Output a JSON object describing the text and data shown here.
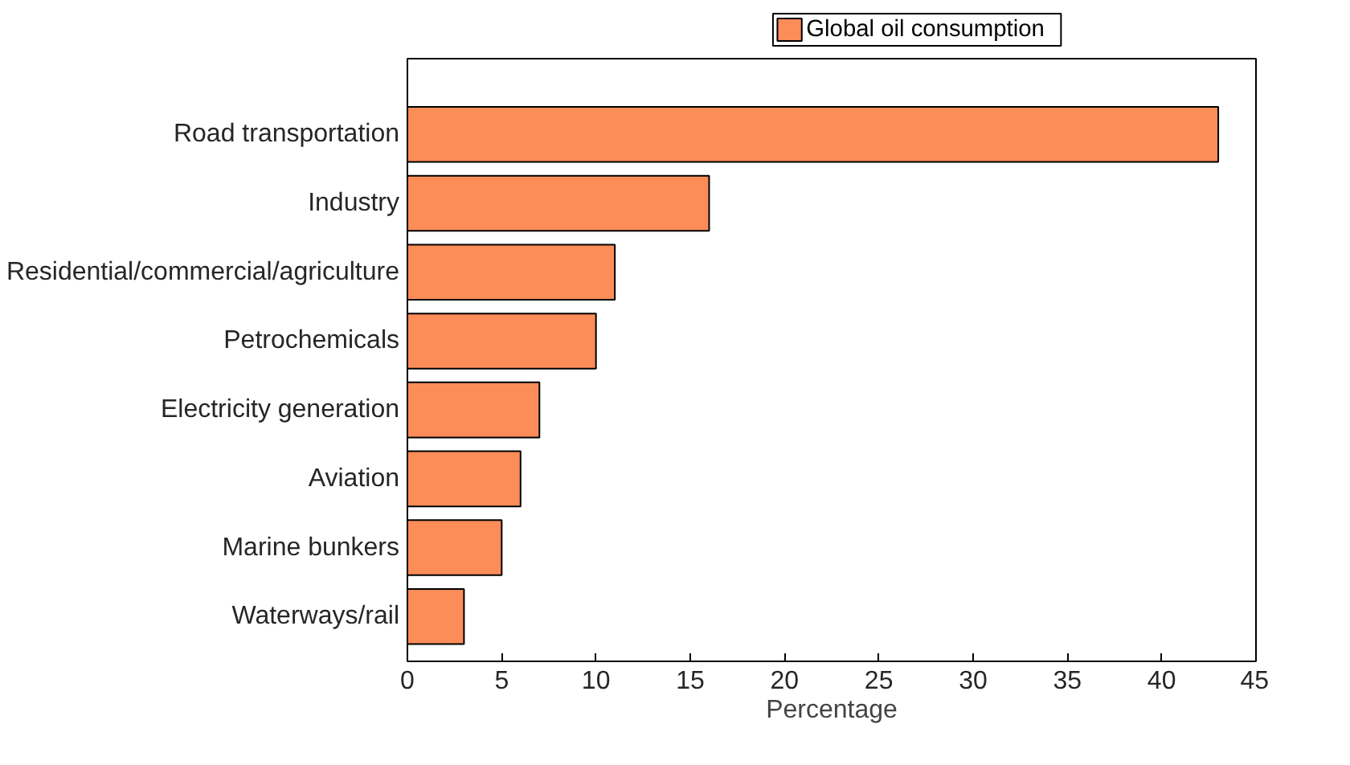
{
  "chart_data": {
    "type": "bar",
    "orientation": "horizontal",
    "xlabel": "Percentage",
    "categories": [
      "Road transportation",
      "Industry",
      "Residential/commercial/agriculture",
      "Petrochemicals",
      "Electricity generation",
      "Aviation",
      "Marine bunkers",
      "Waterways/rail"
    ],
    "series": [
      {
        "name": "Global oil consumption",
        "color": "#fc8d59",
        "values": [
          43,
          16,
          11,
          10,
          7,
          6,
          5,
          3
        ]
      }
    ],
    "xlim": [
      0,
      45
    ],
    "xticks": [
      0,
      5,
      10,
      15,
      20,
      25,
      30,
      35,
      40,
      45
    ],
    "grid": false,
    "legend": "top"
  }
}
